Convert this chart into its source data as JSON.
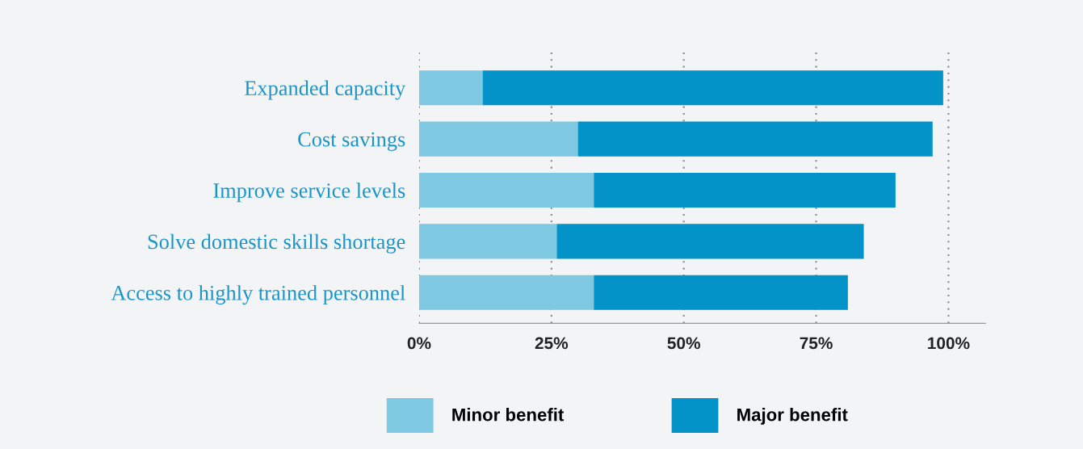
{
  "chart_data": {
    "type": "bar",
    "orientation": "horizontal",
    "stacked": true,
    "categories": [
      "Expanded capacity",
      "Cost savings",
      "Improve service levels",
      "Solve domestic skills shortage",
      "Access to highly trained personnel"
    ],
    "series": [
      {
        "name": "Minor benefit",
        "color": "#7fc8e2",
        "values": [
          12,
          30,
          33,
          26,
          33
        ]
      },
      {
        "name": "Major benefit",
        "color": "#0393c8",
        "values": [
          87,
          67,
          57,
          58,
          48
        ]
      }
    ],
    "xlim": [
      0,
      107
    ],
    "xticks": [
      {
        "value": 0,
        "label": "0%"
      },
      {
        "value": 25,
        "label": "25%"
      },
      {
        "value": 50,
        "label": "50%"
      },
      {
        "value": 75,
        "label": "75%"
      },
      {
        "value": 100,
        "label": "100%"
      }
    ],
    "grid": "x",
    "legend": "bottom"
  }
}
